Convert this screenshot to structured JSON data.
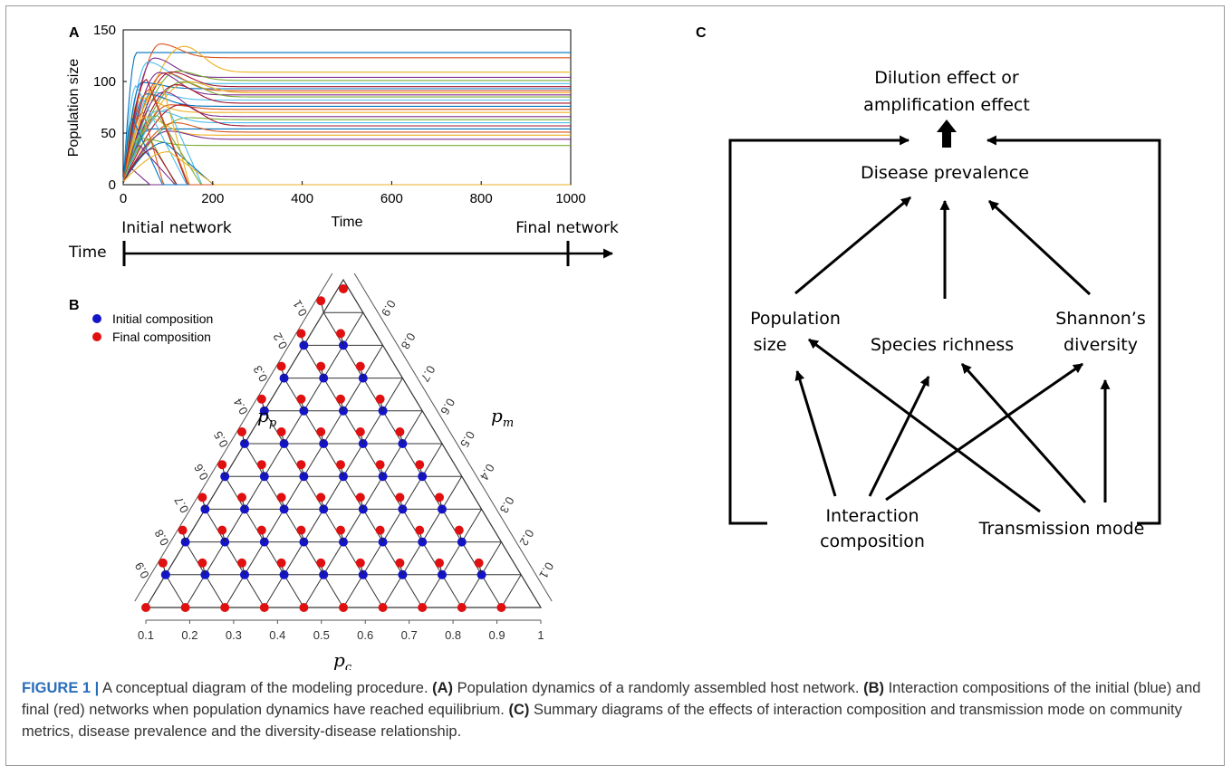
{
  "figure": {
    "panel_labels": {
      "a": "A",
      "b": "B",
      "c": "C"
    },
    "caption": {
      "label": "FIGURE 1 |",
      "text": " A conceptual diagram of the modeling procedure. ",
      "parts": [
        {
          "tag": "(A)",
          "text": " Population dynamics of a randomly assembled host network. "
        },
        {
          "tag": "(B)",
          "text": " Interaction compositions of the initial (blue) and final (red) networks when population dynamics have reached equilibrium. "
        },
        {
          "tag": "(C)",
          "text": " Summary diagrams of the effects of interaction composition and transmission mode on community metrics, disease prevalence and the diversity-disease relationship."
        }
      ]
    }
  },
  "panel_a": {
    "chart_data": {
      "type": "line",
      "xlabel": "Time",
      "ylabel": "Population size",
      "xlim": [
        0,
        1000
      ],
      "ylim": [
        0,
        150
      ],
      "xticks": [
        0,
        200,
        400,
        600,
        800,
        1000
      ],
      "yticks": [
        0,
        50,
        100,
        150
      ],
      "series_equilibria": [
        128,
        123,
        109,
        104,
        101,
        98,
        95,
        93,
        91,
        89,
        87,
        85,
        82,
        79,
        76,
        73,
        70,
        66,
        63,
        60,
        57,
        54,
        51,
        48,
        44,
        38
      ],
      "series_extinct_count": 14
    },
    "timeline": {
      "axis_label": "Time",
      "start_label": "Initial network",
      "end_label": "Final network"
    }
  },
  "panel_b": {
    "legend": [
      {
        "label": "Initial composition",
        "color": "#1414c8"
      },
      {
        "label": "Final composition",
        "color": "#e01010"
      }
    ],
    "axis_labels": {
      "bottom": "p",
      "bottom_sub": "c",
      "left": "p",
      "left_sub": "p",
      "right": "p",
      "right_sub": "m"
    },
    "ticks": [
      "0.1",
      "0.2",
      "0.3",
      "0.4",
      "0.5",
      "0.6",
      "0.7",
      "0.8",
      "0.9"
    ],
    "bottom_ticks": [
      "0.1",
      "0.2",
      "0.3",
      "0.4",
      "0.5",
      "0.6",
      "0.7",
      "0.8",
      "0.9",
      "1"
    ]
  },
  "panel_c": {
    "nodes": {
      "outcome_line1": "Dilution effect or",
      "outcome_line2": "amplification effect",
      "prevalence": "Disease prevalence",
      "popsize_line1": "Population",
      "popsize_line2": "size",
      "richness": "Species richness",
      "shannon_line1": "Shannon’s",
      "shannon_line2": "diversity",
      "interaction_line1": "Interaction",
      "interaction_line2": "composition",
      "transmission": "Transmission mode"
    }
  }
}
